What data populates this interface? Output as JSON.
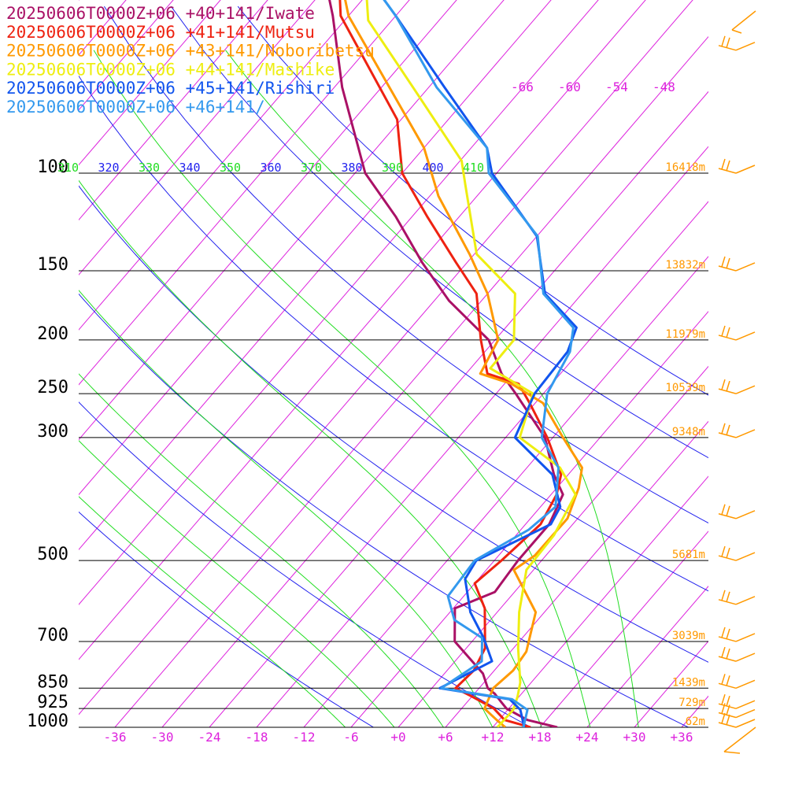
{
  "chart_data": {
    "type": "line",
    "chart_kind": "skew-T log-P sounding",
    "title": "",
    "xlabel": "",
    "ylabel": "",
    "y_scale": "log pressure (hPa, inverted)",
    "grid": true,
    "legend_placement": "top-left",
    "colors": {
      "isobar": "#000000",
      "isotherm": "#dd22dd",
      "dry_adiabat": "#2222ee",
      "moist_adiabat": "#22dd22",
      "height_label": "#ff9900",
      "tick_label": "#dd22dd",
      "wind_barb": "#ff9900"
    },
    "pressure_levels": [
      100,
      150,
      200,
      250,
      300,
      500,
      700,
      850,
      925,
      1000
    ],
    "pressure_tick_labels": [
      "100",
      "150",
      "200",
      "250",
      "300",
      "500",
      "700",
      "850",
      "925",
      "1000"
    ],
    "temperature_ticks": [
      -36,
      -30,
      -24,
      -18,
      -12,
      -6,
      0,
      6,
      12,
      18,
      24,
      30,
      36
    ],
    "temperature_tick_labels": [
      "-36",
      "-30",
      "-24",
      "-18",
      "-12",
      "-6",
      "+0",
      "+6",
      "+12",
      "+18",
      "+24",
      "+30",
      "+36"
    ],
    "upper_temperature_labels": [
      {
        "t": -66,
        "label": "-66"
      },
      {
        "t": -60,
        "label": "-60"
      },
      {
        "t": -54,
        "label": "-54"
      },
      {
        "t": -48,
        "label": "-48"
      }
    ],
    "potential_temperature_labels": [
      {
        "theta": 310,
        "label": "310",
        "family": "moist"
      },
      {
        "theta": 320,
        "label": "320",
        "family": "dry"
      },
      {
        "theta": 330,
        "label": "330",
        "family": "moist"
      },
      {
        "theta": 340,
        "label": "340",
        "family": "dry"
      },
      {
        "theta": 350,
        "label": "350",
        "family": "moist"
      },
      {
        "theta": 360,
        "label": "360",
        "family": "dry"
      },
      {
        "theta": 370,
        "label": "370",
        "family": "moist"
      },
      {
        "theta": 380,
        "label": "380",
        "family": "dry"
      },
      {
        "theta": 390,
        "label": "390",
        "family": "moist"
      },
      {
        "theta": 400,
        "label": "400",
        "family": "dry"
      },
      {
        "theta": 410,
        "label": "410",
        "family": "moist"
      }
    ],
    "height_labels": [
      {
        "p": 100,
        "label": "16418m"
      },
      {
        "p": 150,
        "label": "13832m"
      },
      {
        "p": 200,
        "label": "11979m"
      },
      {
        "p": 250,
        "label": "10539m"
      },
      {
        "p": 300,
        "label": "9348m"
      },
      {
        "p": 500,
        "label": "5681m"
      },
      {
        "p": 700,
        "label": "3039m"
      },
      {
        "p": 850,
        "label": "1439m"
      },
      {
        "p": 925,
        "label": "729m"
      },
      {
        "p": 1000,
        "label": "62m"
      }
    ],
    "series": [
      {
        "name": "20250606T0000Z+06 +40+141/Iwate",
        "color": "#aa1166",
        "points": [
          [
            1000,
            20.2
          ],
          [
            970,
            15.6
          ],
          [
            925,
            11.7
          ],
          [
            900,
            10.3
          ],
          [
            870,
            8.6
          ],
          [
            850,
            7.1
          ],
          [
            800,
            4.9
          ],
          [
            700,
            -2.2
          ],
          [
            610,
            -5.8
          ],
          [
            570,
            -2.5
          ],
          [
            500,
            -3.0
          ],
          [
            430,
            -3.0
          ],
          [
            380,
            -4.5
          ],
          [
            350,
            -7.8
          ],
          [
            300,
            -13.0
          ],
          [
            250,
            -21.5
          ],
          [
            230,
            -25.5
          ],
          [
            200,
            -30.8
          ],
          [
            170,
            -40.1
          ],
          [
            145,
            -47.7
          ],
          [
            120,
            -56.0
          ],
          [
            100,
            -64.7
          ],
          [
            70,
            -77.0
          ],
          [
            52,
            -86.0
          ],
          [
            46,
            -90.0
          ]
        ]
      },
      {
        "name": "20250606T0000Z+06 +41+141/Mutsu",
        "color": "#ee2211",
        "points": [
          [
            1000,
            16.8
          ],
          [
            970,
            12.7
          ],
          [
            925,
            10.1
          ],
          [
            880,
            6.0
          ],
          [
            850,
            3.0
          ],
          [
            790,
            3.4
          ],
          [
            720,
            2.4
          ],
          [
            610,
            -2.0
          ],
          [
            550,
            -6.0
          ],
          [
            500,
            -5.1
          ],
          [
            430,
            -4.1
          ],
          [
            380,
            -5.3
          ],
          [
            350,
            -6.9
          ],
          [
            300,
            -12.7
          ],
          [
            260,
            -18.7
          ],
          [
            240,
            -22.2
          ],
          [
            230,
            -27.3
          ],
          [
            200,
            -31.8
          ],
          [
            165,
            -37.4
          ],
          [
            145,
            -43.4
          ],
          [
            120,
            -52.0
          ],
          [
            100,
            -60.0
          ],
          [
            80,
            -66.5
          ],
          [
            52,
            -85.0
          ],
          [
            45,
            -89.0
          ]
        ]
      },
      {
        "name": "20250606T0000Z+06 +43+141/Noboribetsu",
        "color": "#ff9900",
        "points": [
          [
            1000,
            13.6
          ],
          [
            970,
            11.7
          ],
          [
            925,
            8.9
          ],
          [
            850,
            7.8
          ],
          [
            790,
            8.4
          ],
          [
            730,
            8.0
          ],
          [
            620,
            4.9
          ],
          [
            520,
            -2.5
          ],
          [
            490,
            -1.4
          ],
          [
            420,
            -1.3
          ],
          [
            370,
            -3.2
          ],
          [
            340,
            -5.0
          ],
          [
            300,
            -10.7
          ],
          [
            260,
            -17.0
          ],
          [
            240,
            -23.1
          ],
          [
            230,
            -28.2
          ],
          [
            200,
            -29.6
          ],
          [
            165,
            -36.0
          ],
          [
            140,
            -42.6
          ],
          [
            110,
            -52.9
          ],
          [
            90,
            -60.0
          ],
          [
            70,
            -71.0
          ],
          [
            52,
            -84.0
          ],
          [
            46,
            -88.0
          ]
        ]
      },
      {
        "name": "20250606T0000Z+06 +44+141/Mashike",
        "color": "#eeee11",
        "points": [
          [
            1000,
            12.6
          ],
          [
            930,
            12.7
          ],
          [
            880,
            11.8
          ],
          [
            830,
            10.6
          ],
          [
            720,
            6.6
          ],
          [
            620,
            2.8
          ],
          [
            520,
            -0.9
          ],
          [
            450,
            -1.2
          ],
          [
            380,
            -2.9
          ],
          [
            340,
            -7.8
          ],
          [
            300,
            -16.2
          ],
          [
            250,
            -19.3
          ],
          [
            225,
            -27.5
          ],
          [
            200,
            -27.6
          ],
          [
            165,
            -32.5
          ],
          [
            140,
            -41.7
          ],
          [
            105,
            -50.7
          ],
          [
            95,
            -53.8
          ],
          [
            70,
            -68.0
          ],
          [
            53,
            -81.0
          ],
          [
            46,
            -85.0
          ]
        ]
      },
      {
        "name": "20250606T0000Z+06 +45+141/Rishiri",
        "color": "#1155ee",
        "points": [
          [
            1000,
            16.0
          ],
          [
            930,
            13.6
          ],
          [
            890,
            11.1
          ],
          [
            850,
            1.0
          ],
          [
            760,
            4.7
          ],
          [
            690,
            1.1
          ],
          [
            620,
            -3.4
          ],
          [
            540,
            -7.7
          ],
          [
            500,
            -8.3
          ],
          [
            430,
            -2.8
          ],
          [
            400,
            -3.5
          ],
          [
            350,
            -8.0
          ],
          [
            300,
            -16.8
          ],
          [
            250,
            -19.1
          ],
          [
            210,
            -19.5
          ],
          [
            190,
            -21.0
          ],
          [
            165,
            -28.7
          ],
          [
            130,
            -36.0
          ],
          [
            100,
            -48.6
          ],
          [
            90,
            -52.0
          ],
          [
            70,
            -64.0
          ],
          [
            52,
            -78.0
          ],
          [
            45,
            -85.0
          ]
        ]
      },
      {
        "name": "20250606T0000Z+06 +46+141/",
        "color": "#3399ee",
        "points": [
          [
            1000,
            15.9
          ],
          [
            930,
            14.5
          ],
          [
            890,
            11.4
          ],
          [
            850,
            1.2
          ],
          [
            760,
            3.4
          ],
          [
            690,
            0.9
          ],
          [
            640,
            -4.6
          ],
          [
            580,
            -8.0
          ],
          [
            500,
            -8.5
          ],
          [
            440,
            -5.0
          ],
          [
            400,
            -4.1
          ],
          [
            340,
            -8.0
          ],
          [
            300,
            -13.4
          ],
          [
            250,
            -17.5
          ],
          [
            210,
            -19.2
          ],
          [
            190,
            -21.4
          ],
          [
            165,
            -28.9
          ],
          [
            130,
            -35.9
          ],
          [
            100,
            -49.0
          ],
          [
            90,
            -52.0
          ],
          [
            70,
            -65.0
          ],
          [
            52,
            -78.0
          ],
          [
            45,
            -85.0
          ]
        ]
      }
    ],
    "wind_barb_levels_hpa": [
      1000,
      960,
      925,
      850,
      760,
      700,
      600,
      500,
      420,
      300,
      250,
      200,
      150,
      100,
      60
    ]
  }
}
